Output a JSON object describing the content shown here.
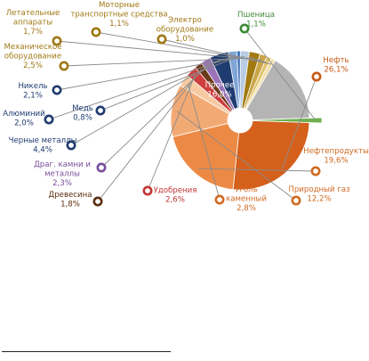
{
  "chart_data": {
    "type": "pie",
    "start_angle_deg": -2,
    "slices": [
      {
        "line1": "Пшеница",
        "line2": "",
        "pct": "1,1%",
        "value": 1.1,
        "color": "#70b050",
        "text_color": "#3f8a36",
        "explode": 1.12
      },
      {
        "line1": "Нефть",
        "line2": "",
        "pct": "26,1%",
        "value": 26.1,
        "color": "#d4601c",
        "text_color": "#c85a16",
        "explode": 1.0
      },
      {
        "line1": "Нефтепродукты",
        "line2": "",
        "pct": "19,6%",
        "value": 19.6,
        "color": "#ec8a45",
        "text_color": "#d06a22",
        "explode": 1.0
      },
      {
        "line1": "Природный газ",
        "line2": "",
        "pct": "12,2%",
        "value": 12.2,
        "color": "#f2aa74",
        "text_color": "#d06a22",
        "explode": 1.0
      },
      {
        "line1": "Уголь",
        "line2": "каменный",
        "pct": "2,8%",
        "value": 2.8,
        "color": "#f7c9a3",
        "text_color": "#d06a22",
        "explode": 1.0
      },
      {
        "line1": "Удобрения",
        "line2": "",
        "pct": "2,6%",
        "value": 2.6,
        "color": "#cf3e3e",
        "text_color": "#c23434",
        "explode": 1.0
      },
      {
        "line1": "Древесина",
        "line2": "",
        "pct": "1,8%",
        "value": 1.8,
        "color": "#6b3a1a",
        "text_color": "#5a2d10",
        "explode": 1.0
      },
      {
        "line1": "Драг. камни и",
        "line2": "металлы",
        "pct": "2,3%",
        "value": 2.3,
        "color": "#9a73b8",
        "text_color": "#7a4e9a",
        "explode": 1.0
      },
      {
        "line1": "Черные металлы",
        "line2": "",
        "pct": "4,4%",
        "value": 4.4,
        "color": "#1f3c70",
        "text_color": "#1f3c70",
        "explode": 1.0
      },
      {
        "line1": "Алюминий",
        "line2": "",
        "pct": "2,0%",
        "value": 2.0,
        "color": "#7fa6d6",
        "text_color": "#1f3c70",
        "explode": 1.0
      },
      {
        "line1": "Медь",
        "line2": "",
        "pct": "0,8%",
        "value": 0.8,
        "color": "#3f6fb8",
        "text_color": "#1f3c70",
        "explode": 1.0
      },
      {
        "line1": "Никель",
        "line2": "",
        "pct": "2,1%",
        "value": 2.1,
        "color": "#b8cce4",
        "text_color": "#1f3c70",
        "explode": 1.0
      },
      {
        "line1": "Механическое",
        "line2": "оборудование",
        "pct": "2,5%",
        "value": 2.5,
        "color": "#a27a12",
        "text_color": "#a07814",
        "explode": 1.0
      },
      {
        "line1": "Летательные",
        "line2": "аппараты",
        "pct": "1,7%",
        "value": 1.7,
        "color": "#caa548",
        "text_color": "#a07814",
        "explode": 1.0
      },
      {
        "line1": "Моторные",
        "line2": "транспортные средства",
        "pct": "1,1%",
        "value": 1.1,
        "color": "#e0c56e",
        "text_color": "#a07814",
        "explode": 1.0
      },
      {
        "line1": "Электро",
        "line2": "оборудование",
        "pct": "1,0%",
        "value": 1.0,
        "color": "#f3e0a8",
        "text_color": "#a07814",
        "explode": 1.0
      },
      {
        "line1": "Прочее",
        "line2": "",
        "pct": "16,0%",
        "value": 16.0,
        "color": "#b4b4b4",
        "text_color": "#ffffff",
        "explode": 1.0,
        "inside": true
      }
    ]
  }
}
